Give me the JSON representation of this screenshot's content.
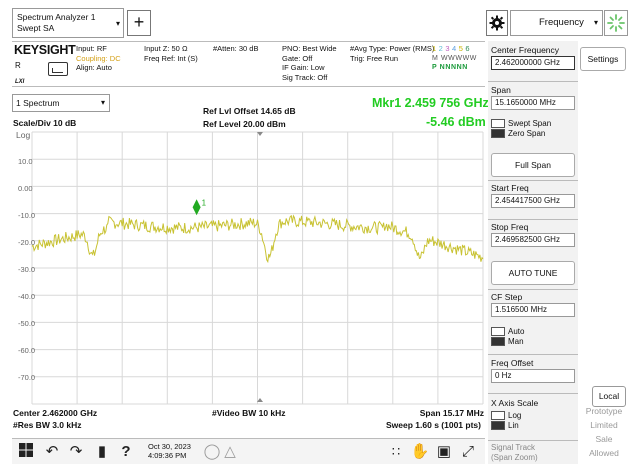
{
  "mode": {
    "line1": "Spectrum Analyzer 1",
    "line2": "Swept SA"
  },
  "top_menu": {
    "selected": "Frequency"
  },
  "info": {
    "brand": "KEYSIGHT",
    "r_label": "R",
    "lxi_label": "LXI",
    "col1": [
      "Input: RF",
      "Coupling: DC",
      "Align: Auto"
    ],
    "col2": [
      "Input Z: 50 Ω",
      "",
      "Freq Ref: Int (S)"
    ],
    "col3": [
      "#Atten: 30 dB"
    ],
    "col4": [
      "PNO: Best Wide",
      "Gate: Off",
      "IF Gain: Low",
      "Sig Track: Off"
    ],
    "col5": [
      "#Avg Type: Power (RMS)",
      "Trig: Free Run"
    ],
    "trace_numbers": [
      "1",
      "2",
      "3",
      "4",
      "5",
      "6"
    ],
    "trace_row1": "M WWWWW",
    "trace_row2": "P NNNNN"
  },
  "measurement": {
    "spectrum_select": "1 Spectrum",
    "scale_div": "Scale/Div 10 dB",
    "log_label": "Log",
    "ref_offset": "Ref Lvl Offset 14.65 dB",
    "ref_level": "Ref Level 20.00 dBm",
    "marker_readout": "Mkr1  2.459 756 GHz",
    "marker_amplitude": "-5.46 dBm",
    "marker_label": "1"
  },
  "y_ticks": [
    "10.0",
    "0.00",
    "-10.0",
    "-20.0",
    "-30.0",
    "-40.0",
    "-50.0",
    "-60.0",
    "-70.0"
  ],
  "bottom": {
    "center_freq": "Center 2.462000 GHz",
    "res_bw": "#Res BW 3.0 kHz",
    "video_bw": "#Video BW 10 kHz",
    "span": "Span 15.17 MHz",
    "sweep": "Sweep 1.60 s (1001 pts)"
  },
  "panel": {
    "center_label": "Center Frequency",
    "center_value": "2.462000000 GHz",
    "span_label": "Span",
    "span_value": "15.1650000 MHz",
    "swept_span": "Swept Span",
    "zero_span": "Zero Span",
    "full_span": "Full Span",
    "start_label": "Start Freq",
    "start_value": "2.454417500 GHz",
    "stop_label": "Stop Freq",
    "stop_value": "2.469582500 GHz",
    "auto_tune": "AUTO TUNE",
    "cf_step_label": "CF Step",
    "cf_step_value": "1.516500 MHz",
    "auto": "Auto",
    "man": "Man",
    "freq_offset_label": "Freq Offset",
    "freq_offset_value": "0 Hz",
    "x_axis_label": "X Axis Scale",
    "log": "Log",
    "lin": "Lin",
    "signal_track": "Signal Track",
    "signal_track_sub": "(Span Zoom)"
  },
  "side": {
    "settings": "Settings",
    "local": "Local",
    "proto": [
      "Prototype",
      "Limited",
      "Sale",
      "Allowed"
    ]
  },
  "taskbar": {
    "date": "Oct 30, 2023",
    "time": "4:09:36 PM"
  },
  "colors": {
    "trace": "#c8c232",
    "marker": "#22cc22",
    "readout": "#22cc22"
  }
}
